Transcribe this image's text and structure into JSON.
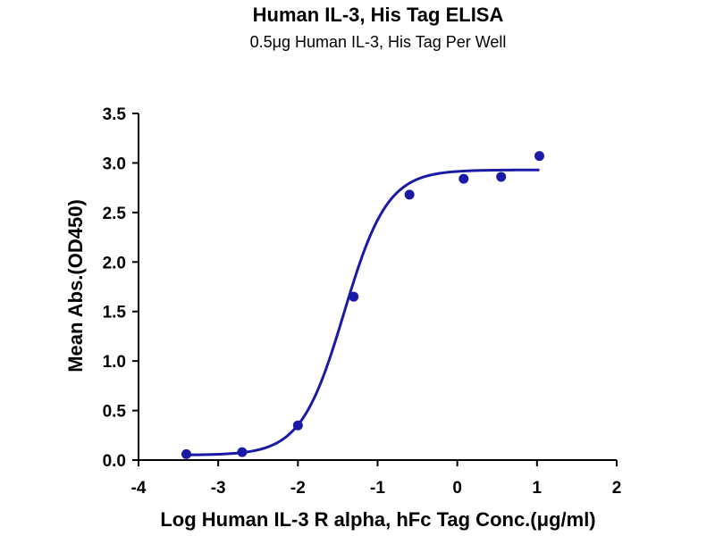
{
  "chart_data": {
    "type": "scatter",
    "title": "Human IL-3, His Tag ELISA",
    "subtitle": "0.5μg Human IL-3, His Tag Per Well",
    "xlabel": "Log Human IL-3 R alpha, hFc Tag Conc.(μg/ml)",
    "ylabel": "Mean Abs.(OD450)",
    "xlim": [
      -4,
      2
    ],
    "ylim": [
      0,
      3.5
    ],
    "x_ticks": [
      "-4",
      "-3",
      "-2",
      "-1",
      "0",
      "1",
      "2"
    ],
    "y_ticks": [
      "0.0",
      "0.5",
      "1.0",
      "1.5",
      "2.0",
      "2.5",
      "3.0",
      "3.5"
    ],
    "grid": false,
    "series": [
      {
        "points": [
          {
            "x": -3.4,
            "y": 0.06
          },
          {
            "x": -2.7,
            "y": 0.08
          },
          {
            "x": -2.0,
            "y": 0.35
          },
          {
            "x": -1.3,
            "y": 1.65
          },
          {
            "x": -0.6,
            "y": 2.68
          },
          {
            "x": 0.08,
            "y": 2.84
          },
          {
            "x": 0.55,
            "y": 2.86
          },
          {
            "x": 1.03,
            "y": 3.07
          }
        ],
        "fit": {
          "model": "four-parameter logistic",
          "bottom": 0.05,
          "top": 2.93,
          "logEC50": -1.42,
          "hill": 1.6,
          "x_range": [
            -3.4,
            1.03
          ]
        },
        "color": "#1a1aa6"
      }
    ]
  }
}
